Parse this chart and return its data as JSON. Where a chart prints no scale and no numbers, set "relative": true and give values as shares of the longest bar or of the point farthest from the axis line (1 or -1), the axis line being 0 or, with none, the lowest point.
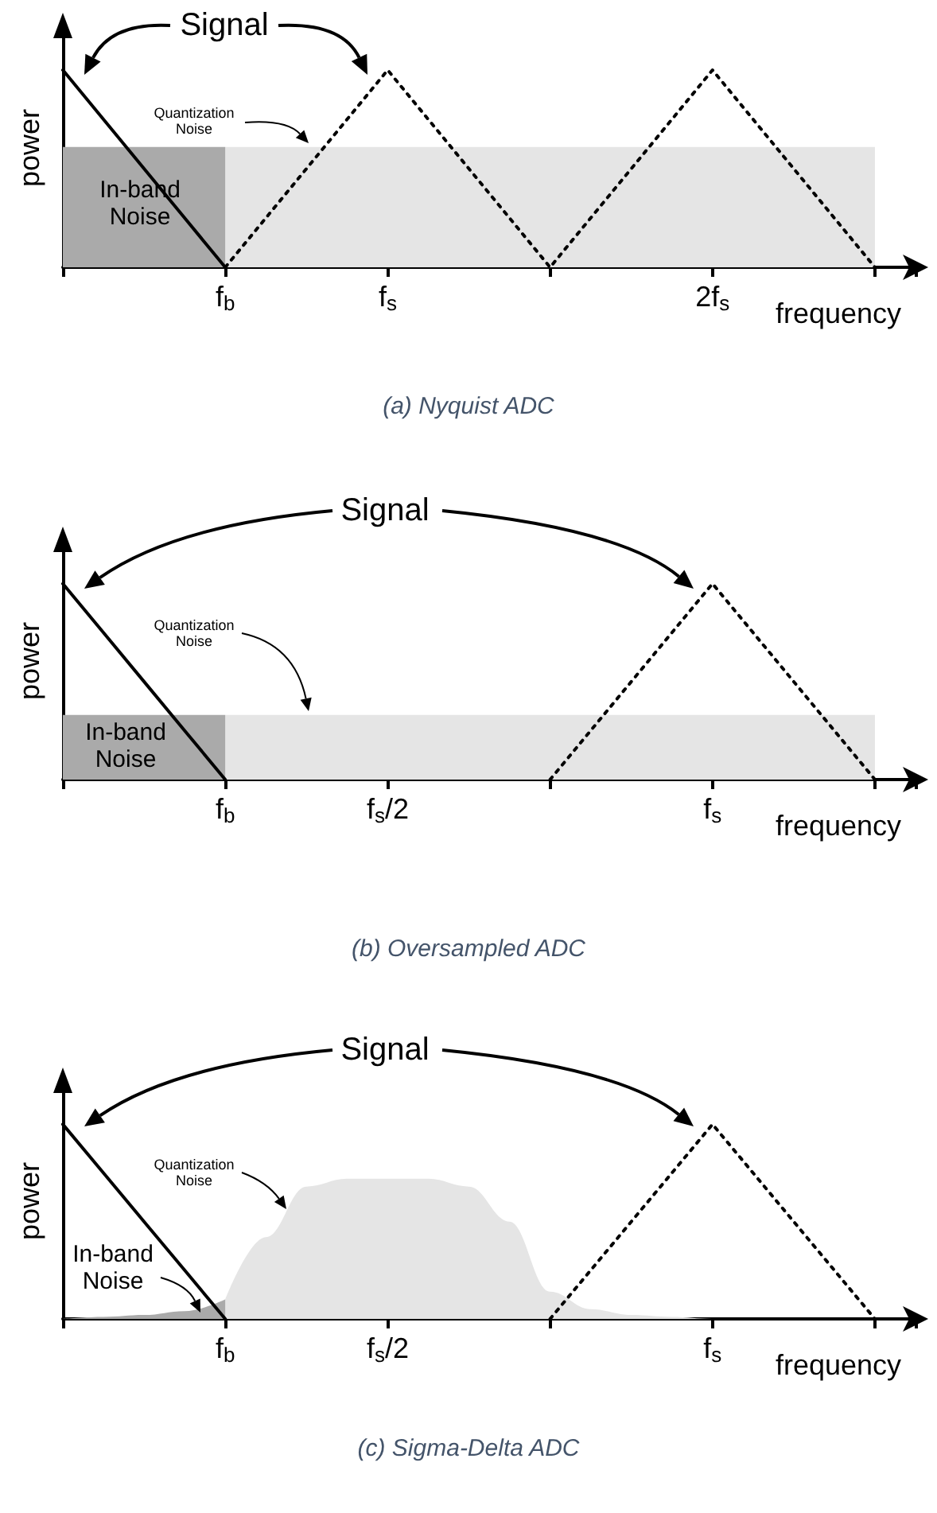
{
  "chart_data": [
    {
      "type": "line",
      "title": "(a) Nyquist ADC",
      "xlabel": "frequency",
      "ylabel": "power",
      "relative": true,
      "categories": [
        null,
        null,
        null,
        null,
        "f$_{b}$",
        null,
        null,
        null,
        "f$_{s}$",
        null,
        null,
        null,
        null,
        null,
        null,
        null,
        "2f$_{s}$",
        null,
        null,
        null,
        null
      ],
      "annotations": [
        "Signal",
        "Quantization Noise",
        "In-band Noise"
      ],
      "series": [
        {
          "type": "area",
          "color": "#e5e5e5",
          "values": [
            null,
            null,
            null,
            null,
            0.61,
            0.61,
            0.61,
            0.61,
            0.61,
            0.61,
            0.61,
            0.61,
            0.61,
            0.61,
            0.61,
            0.61,
            0.61,
            0.61,
            0.61,
            0.61,
            0.61
          ]
        },
        {
          "type": "area",
          "color": "#aaaaaa",
          "values": [
            0.61,
            0.61,
            0.61,
            0.61,
            0.61,
            null,
            null,
            null,
            null,
            null,
            null,
            null,
            null,
            null,
            null,
            null,
            null,
            null,
            null,
            null,
            null
          ]
        },
        {
          "type": "line",
          "color": "#000000",
          "line_style": "solid",
          "values": [
            1,
            0.75,
            0.5,
            0.25,
            0,
            null,
            null,
            null,
            null,
            null,
            null,
            null,
            null,
            null,
            null,
            null,
            null,
            null,
            null,
            null,
            null
          ]
        },
        {
          "type": "line",
          "color": "#000000",
          "line_style": "dotted",
          "values": [
            null,
            null,
            null,
            null,
            0,
            0.25,
            0.5,
            0.75,
            1,
            0.75,
            0.5,
            0.25,
            0,
            0.25,
            0.5,
            0.75,
            1,
            0.75,
            0.5,
            0.25,
            0
          ]
        }
      ]
    },
    {
      "type": "line",
      "title": "(b) Oversampled ADC",
      "xlabel": "frequency",
      "ylabel": "power",
      "relative": true,
      "categories": [
        null,
        null,
        null,
        null,
        "f$_{b}$",
        null,
        null,
        null,
        "f$_{s}$/2",
        null,
        null,
        null,
        null,
        null,
        null,
        null,
        "f$_{s}$",
        null,
        null,
        null,
        null
      ],
      "annotations": [
        "Signal",
        "Quantization Noise",
        "In-band Noise"
      ],
      "series": [
        {
          "type": "area",
          "color": "#e5e5e5",
          "values": [
            null,
            null,
            null,
            null,
            0.33,
            0.33,
            0.33,
            0.33,
            0.33,
            0.33,
            0.33,
            0.33,
            0.33,
            0.33,
            0.33,
            0.33,
            0.33,
            0.33,
            0.33,
            0.33,
            0.33
          ]
        },
        {
          "type": "area",
          "color": "#aaaaaa",
          "values": [
            0.33,
            0.33,
            0.33,
            0.33,
            0.33,
            null,
            null,
            null,
            null,
            null,
            null,
            null,
            null,
            null,
            null,
            null,
            null,
            null,
            null,
            null,
            null
          ]
        },
        {
          "type": "line",
          "color": "#000000",
          "line_style": "solid",
          "values": [
            1,
            0.75,
            0.5,
            0.25,
            0,
            null,
            null,
            null,
            null,
            null,
            null,
            null,
            null,
            null,
            null,
            null,
            null,
            null,
            null,
            null,
            null
          ]
        },
        {
          "type": "line",
          "color": "#000000",
          "line_style": "dotted",
          "values": [
            null,
            null,
            null,
            null,
            null,
            null,
            null,
            null,
            null,
            null,
            null,
            null,
            0,
            0.25,
            0.5,
            0.75,
            1,
            0.75,
            0.5,
            0.25,
            0
          ]
        }
      ]
    },
    {
      "type": "line",
      "title": "(c) Sigma-Delta ADC",
      "xlabel": "frequency",
      "ylabel": "power",
      "relative": true,
      "categories": [
        null,
        null,
        null,
        null,
        "f$_{b}$",
        null,
        null,
        null,
        "f$_{s}$/2",
        null,
        null,
        null,
        null,
        null,
        null,
        null,
        "f$_{s}$",
        null,
        null,
        null,
        null
      ],
      "annotations": [
        "Signal",
        "Quantization Noise",
        "In-band Noise"
      ],
      "series": [
        {
          "type": "area",
          "color": "#e5e5e5",
          "values": [
            null,
            null,
            null,
            null,
            0.1,
            0.42,
            0.68,
            0.72,
            0.72,
            0.72,
            0.68,
            0.5,
            0.14,
            0.05,
            0.02,
            0.01,
            0,
            0,
            0,
            0,
            0
          ]
        },
        {
          "type": "area",
          "color": "#aaaaaa",
          "values": [
            0,
            0.01,
            0.02,
            0.04,
            0.1,
            null,
            null,
            null,
            null,
            null,
            null,
            null,
            null,
            null,
            null,
            null,
            null,
            null,
            null,
            null,
            null
          ]
        },
        {
          "type": "line",
          "color": "#000000",
          "line_style": "solid",
          "values": [
            1,
            0.75,
            0.5,
            0.25,
            0,
            null,
            null,
            null,
            null,
            null,
            null,
            null,
            null,
            null,
            null,
            null,
            null,
            null,
            null,
            null,
            null
          ]
        },
        {
          "type": "line",
          "color": "#000000",
          "line_style": "dotted",
          "values": [
            null,
            null,
            null,
            null,
            null,
            null,
            null,
            null,
            null,
            null,
            null,
            null,
            0,
            0.25,
            0.5,
            0.75,
            1,
            0.75,
            0.5,
            0.25,
            0
          ]
        }
      ]
    }
  ]
}
